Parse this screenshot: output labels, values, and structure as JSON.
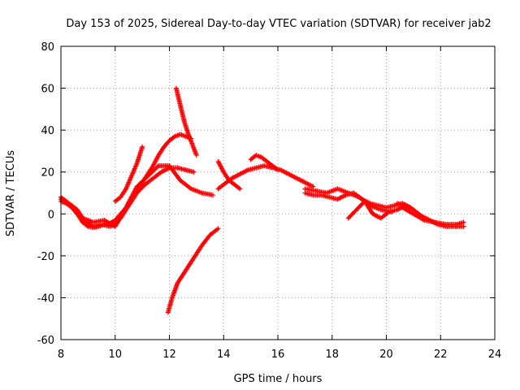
{
  "chart_data": {
    "type": "scatter",
    "title": "Day 153 of 2025, Sidereal Day-to-day VTEC variation (SDTVAR) for receiver jab2",
    "xlabel": "GPS time / hours",
    "ylabel": "SDTVAR / TECUs",
    "xlim": [
      8,
      24
    ],
    "ylim": [
      -60,
      80
    ],
    "xticks": [
      8,
      10,
      12,
      14,
      16,
      18,
      20,
      22,
      24
    ],
    "yticks": [
      -60,
      -40,
      -20,
      0,
      20,
      40,
      60,
      80
    ],
    "xtick_labels": [
      "8",
      "10",
      "12",
      "14",
      "16",
      "18",
      "20",
      "22",
      "24"
    ],
    "ytick_labels": [
      "-60",
      "-40",
      "-20",
      "0",
      "20",
      "40",
      "60",
      "80"
    ],
    "grid": true,
    "marker": "+",
    "marker_color": "#ff0000",
    "series": [
      {
        "name": "arc-low-morning",
        "x": [
          8.0,
          8.2,
          8.4,
          8.6,
          8.8,
          9.0,
          9.2,
          9.4,
          9.6,
          9.8,
          10.0,
          10.2,
          10.4,
          10.6,
          10.8,
          11.0,
          11.2,
          11.4,
          11.6,
          11.8,
          12.0,
          12.2,
          12.4,
          12.6,
          12.8
        ],
        "y": [
          7,
          5,
          3,
          0,
          -4,
          -6,
          -6.5,
          -6,
          -5,
          -4.5,
          -3,
          0,
          3,
          7,
          11,
          15,
          19,
          23,
          28,
          32,
          35,
          37,
          38,
          37,
          36
        ]
      },
      {
        "name": "arc-low-morning-2",
        "x": [
          8.0,
          8.3,
          8.6,
          8.9,
          9.2,
          9.5,
          9.8,
          10.0,
          10.2,
          10.5,
          10.8,
          11.1,
          11.4,
          11.7,
          12.0,
          12.3,
          12.6,
          12.9
        ],
        "y": [
          8,
          5,
          2,
          -4,
          -6,
          -5,
          -6,
          -5,
          -2,
          4,
          10,
          14,
          17,
          20,
          22,
          22,
          21,
          20
        ]
      },
      {
        "name": "arc-mid-morning",
        "x": [
          8.0,
          8.4,
          8.8,
          9.2,
          9.6,
          10.0,
          10.4,
          10.8,
          11.2,
          11.6,
          12.0,
          12.4,
          12.8,
          13.2,
          13.6
        ],
        "y": [
          6,
          4,
          -2,
          -4,
          -3,
          -6,
          3,
          13,
          18,
          23,
          23,
          16,
          12,
          10,
          9
        ]
      },
      {
        "name": "arc-rising",
        "x": [
          10.0,
          10.2,
          10.4,
          10.6,
          10.8,
          11.0
        ],
        "y": [
          6,
          8,
          12,
          18,
          24,
          32
        ]
      },
      {
        "name": "arc-high-descending",
        "x": [
          12.25,
          12.4,
          12.55,
          12.7,
          12.85,
          13.0
        ],
        "y": [
          60,
          52,
          44,
          38,
          33,
          28
        ]
      },
      {
        "name": "arc-negative-rising",
        "x": [
          11.95,
          12.1,
          12.3,
          12.6,
          12.9,
          13.2,
          13.5,
          13.8
        ],
        "y": [
          -47,
          -40,
          -33,
          -27,
          -21,
          -15,
          -10,
          -7
        ]
      },
      {
        "name": "arc-midday",
        "x": [
          13.8,
          14.0,
          14.3,
          14.6,
          14.9,
          15.2,
          15.5,
          15.8,
          16.1,
          16.4,
          16.7,
          17.0,
          17.3
        ],
        "y": [
          12,
          14,
          17,
          19,
          21,
          22,
          23,
          22,
          21,
          19,
          17,
          15,
          13
        ]
      },
      {
        "name": "arc-midday-2",
        "x": [
          13.8,
          14.0,
          14.2,
          14.4,
          14.6
        ],
        "y": [
          25,
          20,
          16,
          14,
          12
        ]
      },
      {
        "name": "arc-noon-peaks",
        "x": [
          15.0,
          15.2,
          15.4,
          15.6,
          15.8,
          16.0
        ],
        "y": [
          26,
          28,
          27,
          25,
          23,
          21
        ]
      },
      {
        "name": "arc-afternoon",
        "x": [
          17.0,
          17.3,
          17.6,
          17.9,
          18.2,
          18.5,
          18.8,
          19.1,
          19.4,
          19.7,
          20.0,
          20.3,
          20.6,
          20.9
        ],
        "y": [
          10,
          9,
          9,
          8,
          7,
          9,
          10,
          7,
          5,
          4,
          3,
          4,
          5,
          3
        ]
      },
      {
        "name": "arc-afternoon-2",
        "x": [
          17.0,
          17.4,
          17.8,
          18.2,
          18.6,
          19.0,
          19.4,
          19.8,
          20.2
        ],
        "y": [
          12,
          11,
          10,
          12,
          10,
          8,
          4,
          2,
          1
        ]
      },
      {
        "name": "arc-afternoon-3",
        "x": [
          18.6,
          18.9,
          19.2,
          19.5,
          19.8,
          20.1,
          20.4,
          20.7
        ],
        "y": [
          -2,
          2,
          6,
          0,
          -2,
          1,
          2,
          4
        ]
      },
      {
        "name": "arc-evening",
        "x": [
          20.4,
          20.7,
          21.0,
          21.3,
          21.6,
          21.9,
          22.2,
          22.5,
          22.85
        ],
        "y": [
          5,
          4,
          2,
          -1,
          -3,
          -5,
          -6,
          -6,
          -6
        ]
      },
      {
        "name": "arc-evening-2",
        "x": [
          20.6,
          21.0,
          21.4,
          21.8,
          22.2,
          22.6,
          22.85
        ],
        "y": [
          3,
          0,
          -3,
          -4,
          -5,
          -5,
          -4
        ]
      }
    ]
  }
}
